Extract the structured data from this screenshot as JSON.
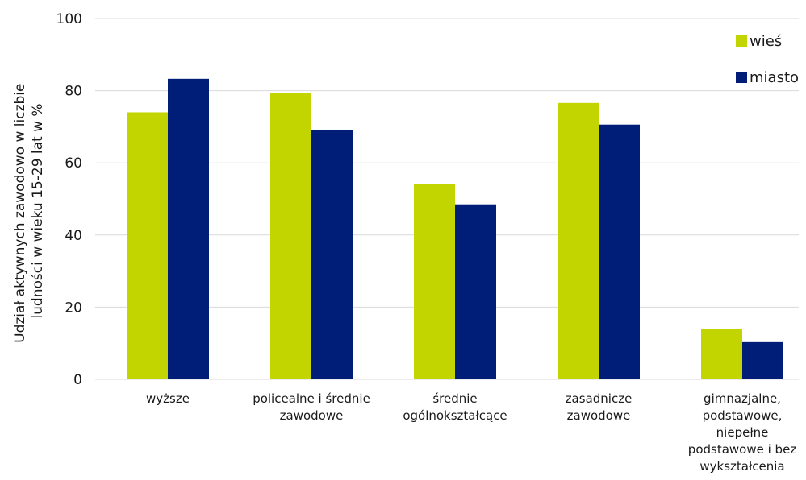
{
  "chart_data": {
    "type": "bar",
    "title": "",
    "xlabel": "",
    "ylabel_lines": [
      "Udział aktywnych zawodowo w liczbie",
      "ludności w wieku 15-29 lat w %"
    ],
    "ylim": [
      0,
      100
    ],
    "yticks": [
      0,
      20,
      40,
      60,
      80,
      100
    ],
    "grid": true,
    "legend_position": "top-right",
    "categories": [
      [
        "wyższe"
      ],
      [
        "policealne i średnie",
        "zawodowe"
      ],
      [
        "średnie",
        "ogólnokształcące"
      ],
      [
        "zasadnicze",
        "zawodowe"
      ],
      [
        "gimnazjalne,",
        "podstawowe,",
        "niepełne",
        "podstawowe i bez",
        "wykształcenia"
      ]
    ],
    "series": [
      {
        "name": "wieś",
        "color": "#c2d500",
        "values": [
          74,
          79.3,
          54.2,
          76.6,
          14
        ]
      },
      {
        "name": "miasto",
        "color": "#001e78",
        "values": [
          83.3,
          69.2,
          48.5,
          70.6,
          10.3
        ]
      }
    ]
  }
}
